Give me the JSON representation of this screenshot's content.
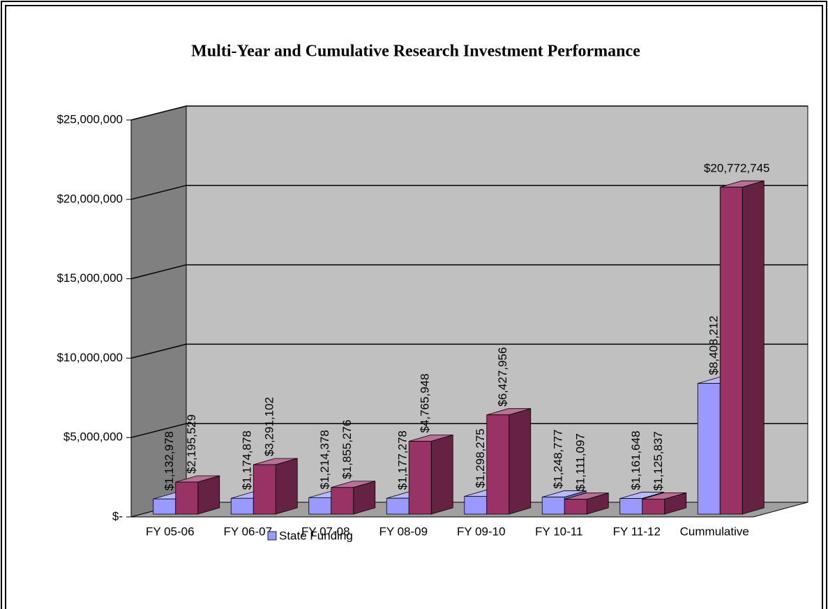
{
  "chart_data": {
    "type": "bar3d",
    "title": "Multi-Year and Cumulative Research Investment Performance",
    "categories": [
      "FY 05-06",
      "FY 06-07",
      "FY 07-08",
      "FY 08-09",
      "FY 09-10",
      "FY 10-11",
      "FY 11-12",
      "Cummulative"
    ],
    "series": [
      {
        "name": "State Funding",
        "color": "#9999ff",
        "values": [
          1132978,
          1174878,
          1214378,
          1177278,
          1298275,
          1248777,
          1161648,
          8408212
        ],
        "value_labels": [
          "$1,132,978",
          "$1,174,878",
          "$1,214,378",
          "$1,177,278",
          "$1,298,275",
          "$1,248,777",
          "$1,161,648",
          "$8,408,212"
        ]
      },
      {
        "color": "#993366",
        "values": [
          2195529,
          3291102,
          1855276,
          4765948,
          6427956,
          1111097,
          1125837,
          20772745
        ],
        "value_labels": [
          "$2,195,529",
          "$3,291,102",
          "$1,855,276",
          "$4,765,948",
          "$6,427,956",
          "$1,111,097",
          "$1,125,837",
          "$20,772,745"
        ]
      }
    ],
    "ylim": [
      0,
      25000000
    ],
    "yticks": [
      {
        "value": 0,
        "label": "$-"
      },
      {
        "value": 5000000,
        "label": "$5,000,000"
      },
      {
        "value": 10000000,
        "label": "$10,000,000"
      },
      {
        "value": 15000000,
        "label": "$15,000,000"
      },
      {
        "value": 20000000,
        "label": "$20,000,000"
      },
      {
        "value": 25000000,
        "label": "$25,000,000"
      }
    ],
    "grid": true,
    "legend": "bottom"
  }
}
